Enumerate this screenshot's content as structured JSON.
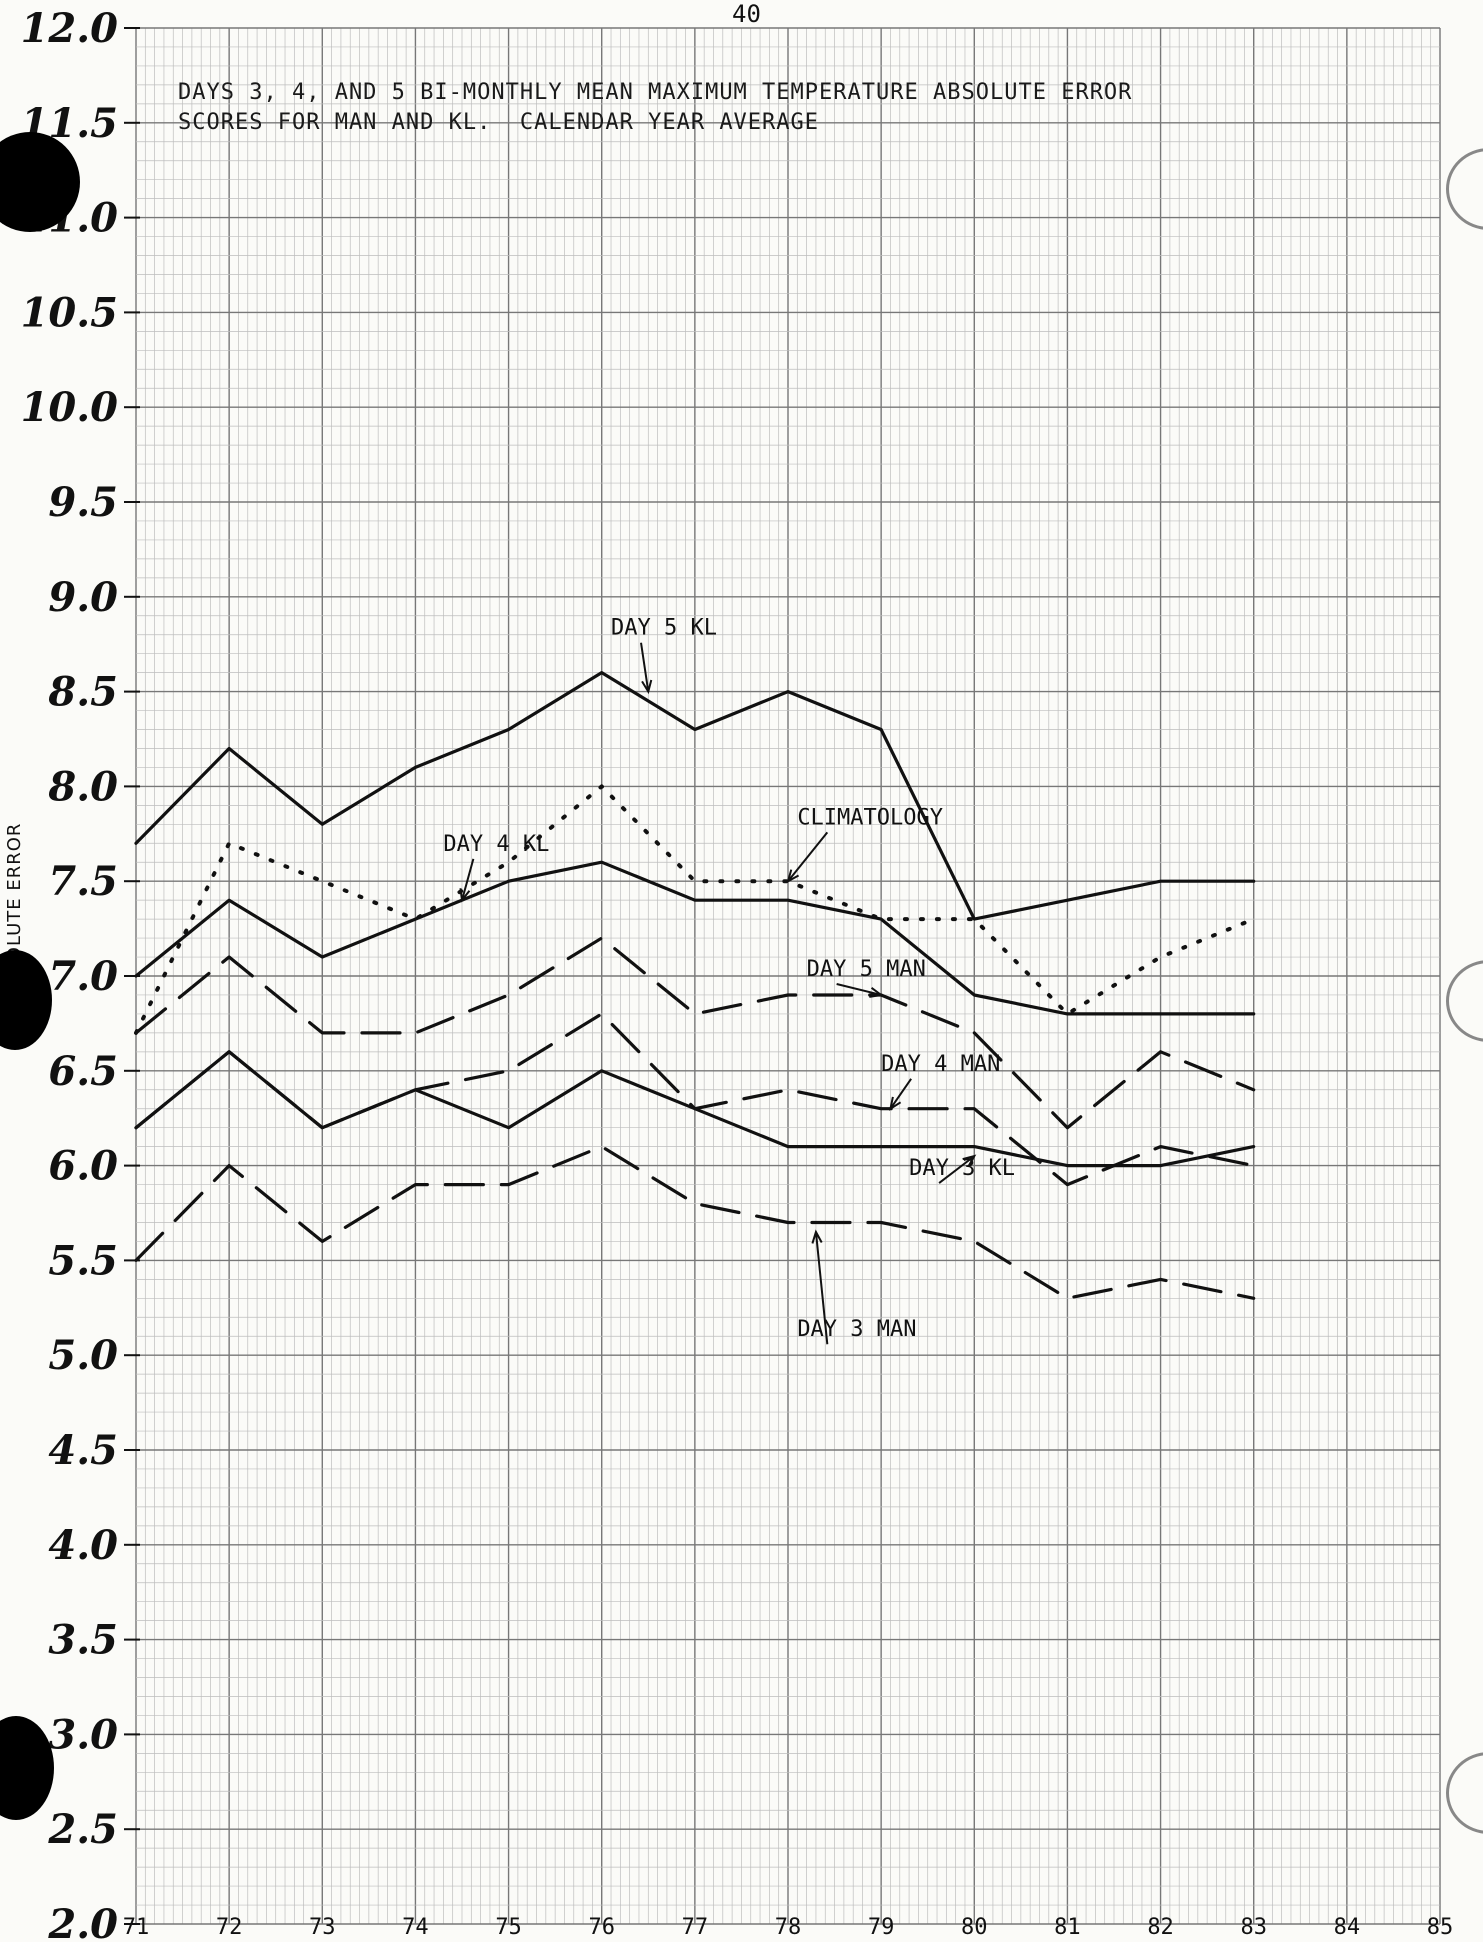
{
  "page_number": "40",
  "title_lines": [
    "DAYS 3, 4, AND 5 BI-MONTHLY MEAN MAXIMUM TEMPERATURE ABSOLUTE ERROR",
    "SCORES FOR MAN AND KL.  CALENDAR YEAR AVERAGE"
  ],
  "y_axis_label": "ABSOLUTE ERROR",
  "chart_data": {
    "type": "line",
    "title": "DAYS 3, 4, AND 5 BI-MONTHLY MEAN MAXIMUM TEMPERATURE ABSOLUTE ERROR SCORES FOR MAN AND KL.  CALENDAR YEAR AVERAGE",
    "ylabel": "ABSOLUTE ERROR",
    "xlabel": "",
    "x_ticks": [
      "71",
      "72",
      "73",
      "74",
      "75",
      "76",
      "77",
      "78",
      "79",
      "80",
      "81",
      "82",
      "83",
      "84",
      "85"
    ],
    "y_ticks": [
      "2.0",
      "2.5",
      "3.0",
      "3.5",
      "4.0",
      "4.5",
      "5.0",
      "5.5",
      "6.0",
      "6.5",
      "7.0",
      "7.5",
      "8.0",
      "8.5",
      "9.0",
      "9.5",
      "10.0",
      "10.5",
      "11.0",
      "11.5",
      "12.0"
    ],
    "xlim": [
      71,
      85
    ],
    "ylim": [
      2.0,
      12.0
    ],
    "grid": true,
    "series": [
      {
        "name": "DAY 5 KL",
        "style": "solid",
        "x": [
          71,
          72,
          73,
          74,
          75,
          76,
          77,
          78,
          79,
          80,
          81,
          82,
          83
        ],
        "values": [
          7.7,
          8.2,
          7.8,
          8.1,
          8.3,
          8.6,
          8.3,
          8.5,
          8.3,
          7.3,
          7.4,
          7.5,
          7.5
        ]
      },
      {
        "name": "CLIMATOLOGY",
        "style": "dotted",
        "x": [
          71,
          72,
          73,
          74,
          75,
          76,
          77,
          78,
          79,
          80,
          81,
          82,
          83
        ],
        "values": [
          6.7,
          7.7,
          7.5,
          7.3,
          7.6,
          8.0,
          7.5,
          7.5,
          7.3,
          7.3,
          6.8,
          7.1,
          7.3
        ]
      },
      {
        "name": "DAY 4 KL",
        "style": "solid",
        "x": [
          71,
          72,
          73,
          74,
          75,
          76,
          77,
          78,
          79,
          80,
          81,
          82,
          83
        ],
        "values": [
          7.0,
          7.4,
          7.1,
          7.3,
          7.5,
          7.6,
          7.4,
          7.4,
          7.3,
          6.9,
          6.8,
          6.8,
          6.8
        ]
      },
      {
        "name": "DAY 5 MAN",
        "style": "dashed",
        "x": [
          71,
          72,
          73,
          74,
          75,
          76,
          77,
          78,
          79,
          80,
          81,
          82,
          83
        ],
        "values": [
          6.7,
          7.1,
          6.7,
          6.7,
          6.9,
          7.2,
          6.8,
          6.9,
          6.9,
          6.7,
          6.2,
          6.6,
          6.4
        ]
      },
      {
        "name": "DAY 4 MAN",
        "style": "dashed",
        "x": [
          71,
          72,
          73,
          74,
          75,
          76,
          77,
          78,
          79,
          80,
          81,
          82,
          83
        ],
        "values": [
          6.2,
          6.6,
          6.2,
          6.4,
          6.5,
          6.8,
          6.3,
          6.4,
          6.3,
          6.3,
          5.9,
          6.1,
          6.0
        ]
      },
      {
        "name": "DAY 3 KL",
        "style": "solid",
        "x": [
          71,
          72,
          73,
          74,
          75,
          76,
          77,
          78,
          79,
          80,
          81,
          82,
          83
        ],
        "values": [
          6.2,
          6.6,
          6.2,
          6.4,
          6.2,
          6.5,
          6.3,
          6.1,
          6.1,
          6.1,
          6.0,
          6.0,
          6.1
        ]
      },
      {
        "name": "DAY 3 MAN",
        "style": "dashed",
        "x": [
          71,
          72,
          73,
          74,
          75,
          76,
          77,
          78,
          79,
          80,
          81,
          82,
          83
        ],
        "values": [
          5.5,
          6.0,
          5.6,
          5.9,
          5.9,
          6.1,
          5.8,
          5.7,
          5.7,
          5.6,
          5.3,
          5.4,
          5.3
        ]
      }
    ],
    "annotations": [
      {
        "text": "DAY 5 KL",
        "x": 76.1,
        "y": 8.8,
        "arrow_to": [
          76.5,
          8.5
        ]
      },
      {
        "text": "CLIMATOLOGY",
        "x": 78.1,
        "y": 7.8,
        "arrow_to": [
          78.0,
          7.5
        ]
      },
      {
        "text": "DAY 4 KL",
        "x": 74.3,
        "y": 7.66,
        "arrow_to": [
          74.5,
          7.4
        ]
      },
      {
        "text": "DAY 5 MAN",
        "x": 78.2,
        "y": 7.0,
        "arrow_to": [
          79.0,
          6.9
        ]
      },
      {
        "text": "DAY 4 MAN",
        "x": 79.0,
        "y": 6.5,
        "arrow_to": [
          79.1,
          6.3
        ]
      },
      {
        "text": "DAY 3 KL",
        "x": 79.3,
        "y": 5.95,
        "arrow_to": [
          80.0,
          6.05
        ]
      },
      {
        "text": "DAY 3 MAN",
        "x": 78.1,
        "y": 5.1,
        "arrow_to": [
          78.3,
          5.65
        ]
      }
    ]
  }
}
